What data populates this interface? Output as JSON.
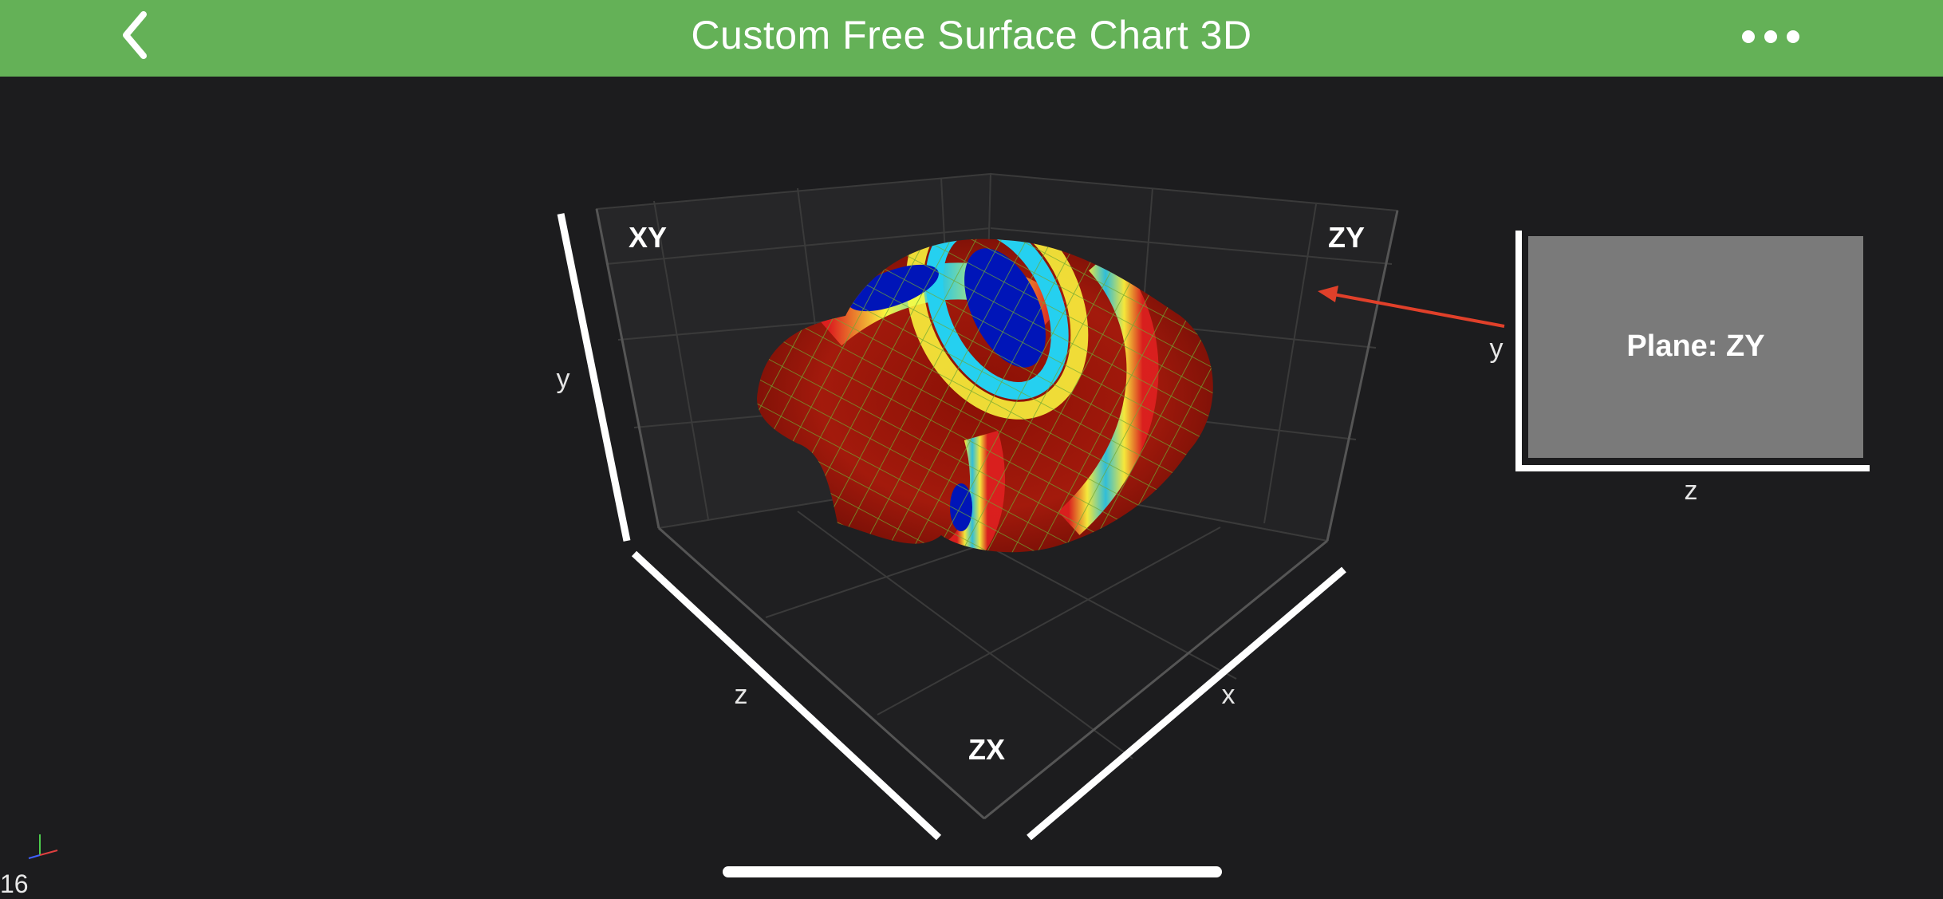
{
  "header": {
    "title": "Custom Free Surface Chart 3D",
    "back_icon": "chevron-left-icon",
    "menu_icon": "more-horizontal-icon"
  },
  "chart": {
    "plane_labels": {
      "xy": "XY",
      "zy": "ZY",
      "zx": "ZX"
    },
    "axis_labels": {
      "x": "x",
      "y": "y",
      "z": "z"
    },
    "surface_colormap": [
      "#0015b8",
      "#25d0f0",
      "#ffff40",
      "#e02020",
      "#8a1005"
    ],
    "mesh_color": "#6fa832",
    "grid_color": "#3a3a3a",
    "background": "#1c1c1e"
  },
  "legend_panel": {
    "title": "Plane: ZY",
    "axis_y": "y",
    "axis_z": "z",
    "pointer_color": "#e0402a"
  },
  "footer": {
    "fps": "16"
  },
  "colors": {
    "accent": "#64b157",
    "text": "#ffffff"
  }
}
